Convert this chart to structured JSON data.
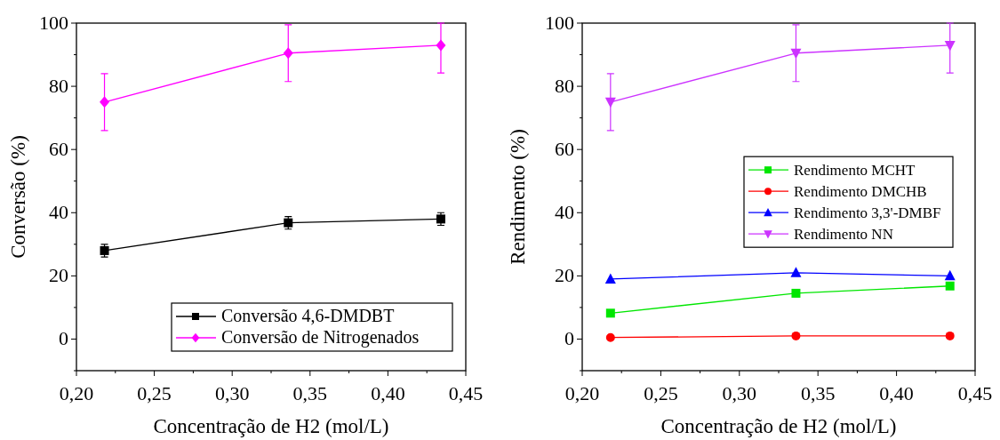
{
  "chart_data": [
    {
      "type": "line",
      "xlabel": "Concentração de H2 (mol/L)",
      "ylabel": "Conversão (%)",
      "x": [
        0.218,
        0.336,
        0.434
      ],
      "xlim": [
        0.2,
        0.45
      ],
      "ylim": [
        -10,
        100
      ],
      "xticks": [
        {
          "value": 0.2,
          "label": "0,20"
        },
        {
          "value": 0.225,
          "label": null
        },
        {
          "value": 0.25,
          "label": "0,25"
        },
        {
          "value": 0.275,
          "label": null
        },
        {
          "value": 0.3,
          "label": "0,30"
        },
        {
          "value": 0.325,
          "label": null
        },
        {
          "value": 0.35,
          "label": "0,35"
        },
        {
          "value": 0.375,
          "label": null
        },
        {
          "value": 0.4,
          "label": "0,40"
        },
        {
          "value": 0.425,
          "label": null
        },
        {
          "value": 0.45,
          "label": "0,45"
        }
      ],
      "yticks": [
        {
          "value": -10,
          "label": null
        },
        0,
        {
          "value": 10,
          "label": null
        },
        20,
        {
          "value": 30,
          "label": null
        },
        40,
        {
          "value": 50,
          "label": null
        },
        60,
        {
          "value": 70,
          "label": null
        },
        80,
        {
          "value": 90,
          "label": null
        },
        100
      ],
      "legend": "bottom right",
      "series": [
        {
          "name": "Conversão 4,6-DMDBT",
          "color": "#000000",
          "marker": "square",
          "values": [
            28,
            36.8,
            38
          ],
          "errors": [
            2,
            2,
            2
          ]
        },
        {
          "name": "Conversão de Nitrogenados",
          "color": "#ff00ff",
          "marker": "diamond",
          "values": [
            75,
            90.5,
            93
          ],
          "errors": [
            9,
            9,
            [
              84.2,
              100
            ]
          ]
        }
      ]
    },
    {
      "type": "line",
      "xlabel": "Concentração de H2 (mol/L)",
      "ylabel": "Rendimento (%)",
      "x": [
        0.218,
        0.336,
        0.434
      ],
      "xlim": [
        0.2,
        0.45
      ],
      "ylim": [
        -10,
        100
      ],
      "xticks": [
        {
          "value": 0.2,
          "label": "0,20"
        },
        {
          "value": 0.225,
          "label": null
        },
        {
          "value": 0.25,
          "label": "0,25"
        },
        {
          "value": 0.275,
          "label": null
        },
        {
          "value": 0.3,
          "label": "0,30"
        },
        {
          "value": 0.325,
          "label": null
        },
        {
          "value": 0.35,
          "label": "0,35"
        },
        {
          "value": 0.375,
          "label": null
        },
        {
          "value": 0.4,
          "label": "0,40"
        },
        {
          "value": 0.425,
          "label": null
        },
        {
          "value": 0.45,
          "label": "0,45"
        }
      ],
      "yticks": [
        {
          "value": -10,
          "label": null
        },
        0,
        {
          "value": 10,
          "label": null
        },
        20,
        {
          "value": 30,
          "label": null
        },
        40,
        {
          "value": 50,
          "label": null
        },
        60,
        {
          "value": 70,
          "label": null
        },
        80,
        {
          "value": 90,
          "label": null
        },
        100
      ],
      "legend": "right",
      "series": [
        {
          "name": "Rendimento MCHT",
          "color": "#00e600",
          "marker": "square",
          "values": [
            8.2,
            14.5,
            16.8
          ]
        },
        {
          "name": "Rendimento DMCHB",
          "color": "#ff0000",
          "marker": "circle",
          "values": [
            0.5,
            1,
            1
          ]
        },
        {
          "name": "Rendimento 3,3'-DMBF",
          "color": "#0000ff",
          "marker": "triangle",
          "values": [
            19,
            21,
            20
          ]
        },
        {
          "name": "Rendimento NN",
          "color": "#cc33ff",
          "marker": "triangle-down",
          "values": [
            75,
            90.5,
            93
          ],
          "errors": [
            9,
            9,
            [
              84.2,
              100
            ]
          ]
        }
      ]
    }
  ]
}
